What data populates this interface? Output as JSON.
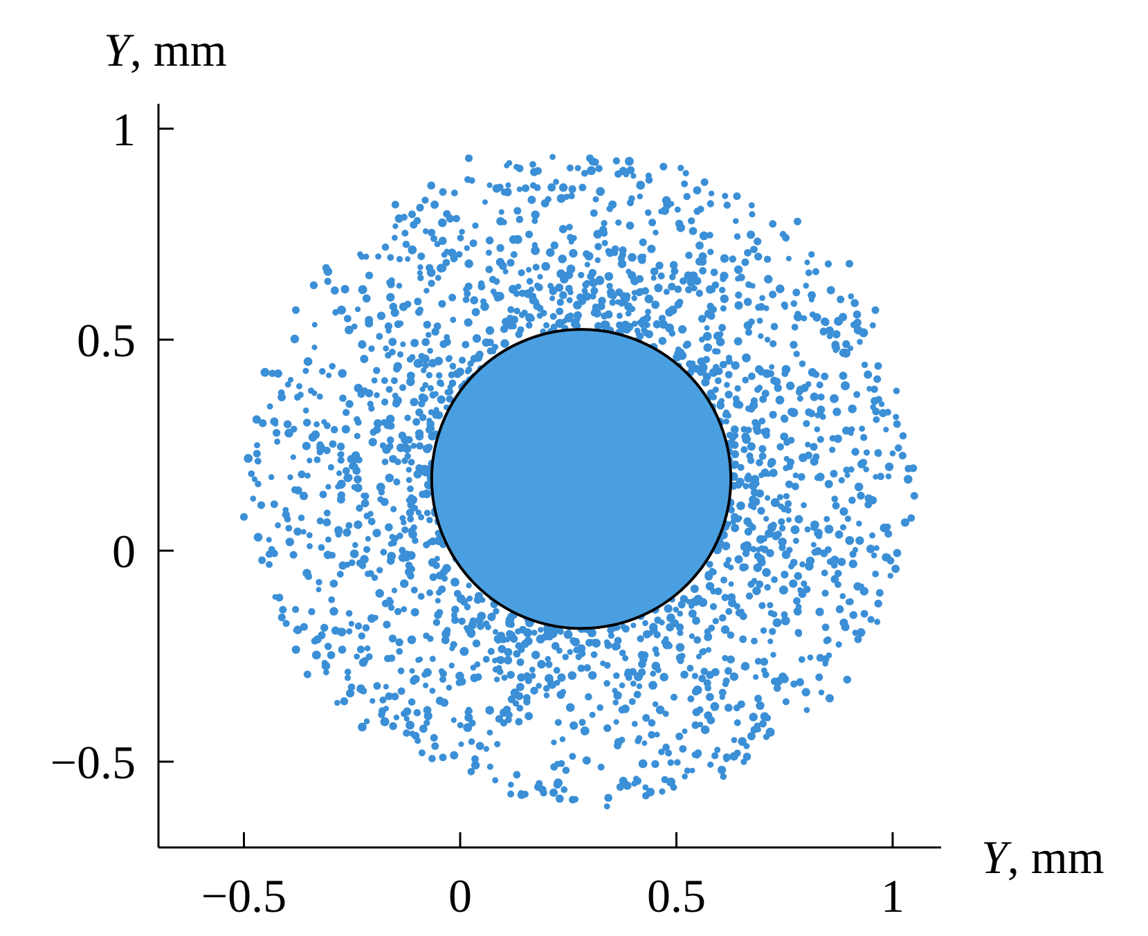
{
  "chart_data": {
    "type": "scatter",
    "xlabel": {
      "var": "Y",
      "unit": ", mm"
    },
    "ylabel": {
      "var": "Y",
      "unit": ", mm"
    },
    "xlim": [
      -0.7,
      1.1
    ],
    "ylim": [
      -0.7,
      1.1
    ],
    "x_ticks": [
      {
        "value": -0.5,
        "label": "−0.5"
      },
      {
        "value": 0,
        "label": "0"
      },
      {
        "value": 0.5,
        "label": "0.5"
      },
      {
        "value": 1,
        "label": "1"
      }
    ],
    "y_ticks": [
      {
        "value": 1,
        "label": "1"
      },
      {
        "value": 0.5,
        "label": "0.5"
      },
      {
        "value": 0,
        "label": "0"
      },
      {
        "value": -0.5,
        "label": "−0.5"
      }
    ],
    "grid": false,
    "point_color": "#3b8fd6",
    "disk": {
      "center": [
        0.28,
        0.17
      ],
      "radius": 0.35,
      "fill": "#4a9fe0",
      "outline": "#000000"
    },
    "scatter_distribution": {
      "center": [
        0.28,
        0.17
      ],
      "max_radius": 0.77,
      "points_shown": "about 2400"
    },
    "points": [
      [
        -0.5,
        0.08
      ],
      [
        -0.47,
        0.23
      ],
      [
        -0.41,
        -0.14
      ],
      [
        -0.38,
        0.57
      ],
      [
        -0.31,
        0.67
      ],
      [
        -0.15,
        0.82
      ],
      [
        -0.04,
        0.85
      ],
      [
        0.02,
        0.93
      ],
      [
        0.18,
        0.9
      ],
      [
        0.3,
        0.93
      ],
      [
        0.47,
        0.91
      ],
      [
        0.64,
        0.84
      ],
      [
        0.78,
        0.78
      ],
      [
        0.9,
        0.68
      ],
      [
        0.96,
        0.57
      ],
      [
        1.01,
        0.3
      ],
      [
        1.05,
        0.13
      ],
      [
        0.99,
        0.04
      ],
      [
        0.97,
        -0.1
      ],
      [
        0.92,
        -0.21
      ],
      [
        0.83,
        -0.3
      ],
      [
        0.7,
        -0.41
      ],
      [
        0.55,
        -0.48
      ],
      [
        0.37,
        -0.56
      ],
      [
        0.26,
        -0.59
      ],
      [
        0.18,
        -0.56
      ],
      [
        -0.04,
        -0.49
      ],
      [
        -0.18,
        -0.38
      ],
      [
        -0.32,
        -0.2
      ],
      [
        -0.43,
        0.11
      ]
    ]
  }
}
